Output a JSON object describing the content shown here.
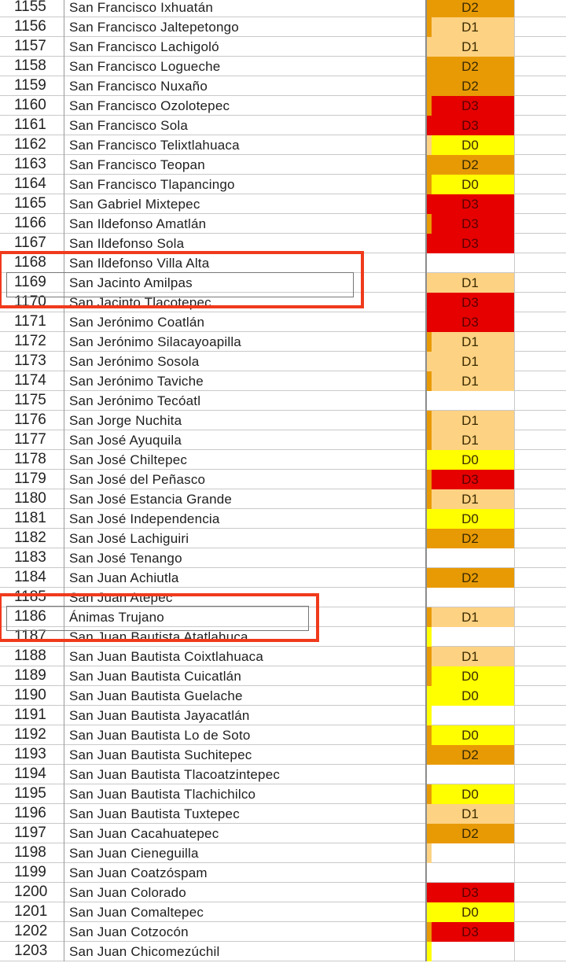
{
  "colors": {
    "D0": "#ffff00",
    "D1": "#fdd283",
    "D2": "#e89a05",
    "D3": "#e60000",
    "highlight_box": "#f03a1c"
  },
  "rows": [
    {
      "num": "1155",
      "name": "San Francisco Ixhuatán",
      "strip": "D2",
      "cat": "D2"
    },
    {
      "num": "1156",
      "name": "San Francisco Jaltepetongo",
      "strip": "D2",
      "cat": "D1"
    },
    {
      "num": "1157",
      "name": "San Francisco Lachigoló",
      "strip": "D1",
      "cat": "D1"
    },
    {
      "num": "1158",
      "name": "San Francisco Logueche",
      "strip": "D2",
      "cat": "D2"
    },
    {
      "num": "1159",
      "name": "San Francisco Nuxaño",
      "strip": "D2",
      "cat": "D2"
    },
    {
      "num": "1160",
      "name": "San Francisco Ozolotepec",
      "strip": "D2",
      "cat": "D3"
    },
    {
      "num": "1161",
      "name": "San Francisco Sola",
      "strip": "D3",
      "cat": "D3"
    },
    {
      "num": "1162",
      "name": "San Francisco Telixtlahuaca",
      "strip": "D1",
      "cat": "D0"
    },
    {
      "num": "1163",
      "name": "San Francisco Teopan",
      "strip": "D2",
      "cat": "D2"
    },
    {
      "num": "1164",
      "name": "San Francisco Tlapancingo",
      "strip": "D2",
      "cat": "D0"
    },
    {
      "num": "1165",
      "name": "San Gabriel Mixtepec",
      "strip": "D3",
      "cat": "D3"
    },
    {
      "num": "1166",
      "name": "San Ildefonso Amatlán",
      "strip": "D2",
      "cat": "D3"
    },
    {
      "num": "1167",
      "name": "San Ildefonso Sola",
      "strip": "D3",
      "cat": "D3"
    },
    {
      "num": "1168",
      "name": "San Ildefonso Villa Alta",
      "strip": "",
      "cat": ""
    },
    {
      "num": "1169",
      "name": "San Jacinto Amilpas",
      "strip": "D1",
      "cat": "D1"
    },
    {
      "num": "1170",
      "name": "San Jacinto Tlacotepec",
      "strip": "D3",
      "cat": "D3"
    },
    {
      "num": "1171",
      "name": "San Jerónimo Coatlán",
      "strip": "D3",
      "cat": "D3"
    },
    {
      "num": "1172",
      "name": "San Jerónimo Silacayoapilla",
      "strip": "D2",
      "cat": "D1"
    },
    {
      "num": "1173",
      "name": "San Jerónimo Sosola",
      "strip": "D1",
      "cat": "D1"
    },
    {
      "num": "1174",
      "name": "San Jerónimo Taviche",
      "strip": "D2",
      "cat": "D1"
    },
    {
      "num": "1175",
      "name": "San Jerónimo Tecóatl",
      "strip": "",
      "cat": ""
    },
    {
      "num": "1176",
      "name": "San Jorge Nuchita",
      "strip": "D2",
      "cat": "D1"
    },
    {
      "num": "1177",
      "name": "San José Ayuquila",
      "strip": "D2",
      "cat": "D1"
    },
    {
      "num": "1178",
      "name": "San José Chiltepec",
      "strip": "",
      "cat": "D0"
    },
    {
      "num": "1179",
      "name": "San José del Peñasco",
      "strip": "D2",
      "cat": "D3"
    },
    {
      "num": "1180",
      "name": "San José Estancia Grande",
      "strip": "D2",
      "cat": "D1"
    },
    {
      "num": "1181",
      "name": "San José Independencia",
      "strip": "",
      "cat": "D0"
    },
    {
      "num": "1182",
      "name": "San José Lachiguiri",
      "strip": "D2",
      "cat": "D2"
    },
    {
      "num": "1183",
      "name": "San José Tenango",
      "strip": "",
      "cat": ""
    },
    {
      "num": "1184",
      "name": "San Juan Achiutla",
      "strip": "D2",
      "cat": "D2"
    },
    {
      "num": "1185",
      "name": "San Juan Atepec",
      "strip": "",
      "cat": ""
    },
    {
      "num": "1186",
      "name": "Ánimas Trujano",
      "strip": "D2",
      "cat": "D1"
    },
    {
      "num": "1187",
      "name": "San Juan Bautista Atatlahuca",
      "strip": "D0",
      "cat": ""
    },
    {
      "num": "1188",
      "name": "San Juan Bautista Coixtlahuaca",
      "strip": "D2",
      "cat": "D1"
    },
    {
      "num": "1189",
      "name": "San Juan Bautista Cuicatlán",
      "strip": "D2",
      "cat": "D0"
    },
    {
      "num": "1190",
      "name": "San Juan Bautista Guelache",
      "strip": "",
      "cat": "D0"
    },
    {
      "num": "1191",
      "name": "San Juan Bautista Jayacatlán",
      "strip": "D0",
      "cat": ""
    },
    {
      "num": "1192",
      "name": "San Juan Bautista Lo de Soto",
      "strip": "D2",
      "cat": "D0"
    },
    {
      "num": "1193",
      "name": "San Juan Bautista Suchitepec",
      "strip": "D2",
      "cat": "D2"
    },
    {
      "num": "1194",
      "name": "San Juan Bautista Tlacoatzintepec",
      "strip": "",
      "cat": ""
    },
    {
      "num": "1195",
      "name": "San Juan Bautista Tlachichilco",
      "strip": "D2",
      "cat": "D0"
    },
    {
      "num": "1196",
      "name": "San Juan Bautista Tuxtepec",
      "strip": "",
      "cat": "D1"
    },
    {
      "num": "1197",
      "name": "San Juan Cacahuatepec",
      "strip": "D2",
      "cat": "D2"
    },
    {
      "num": "1198",
      "name": "San Juan Cieneguilla",
      "strip": "D1",
      "cat": ""
    },
    {
      "num": "1199",
      "name": "San Juan Coatzóspam",
      "strip": "",
      "cat": ""
    },
    {
      "num": "1200",
      "name": "San Juan Colorado",
      "strip": "D3",
      "cat": "D3"
    },
    {
      "num": "1201",
      "name": "San Juan Comaltepec",
      "strip": "D0",
      "cat": "D0"
    },
    {
      "num": "1202",
      "name": "San Juan Cotzocón",
      "strip": "D2",
      "cat": "D3"
    },
    {
      "num": "1203",
      "name": "San Juan Chicomezúchil",
      "strip": "D0",
      "cat": ""
    }
  ],
  "highlights": [
    {
      "label": "highlight-1169"
    },
    {
      "label": "highlight-1186"
    }
  ]
}
